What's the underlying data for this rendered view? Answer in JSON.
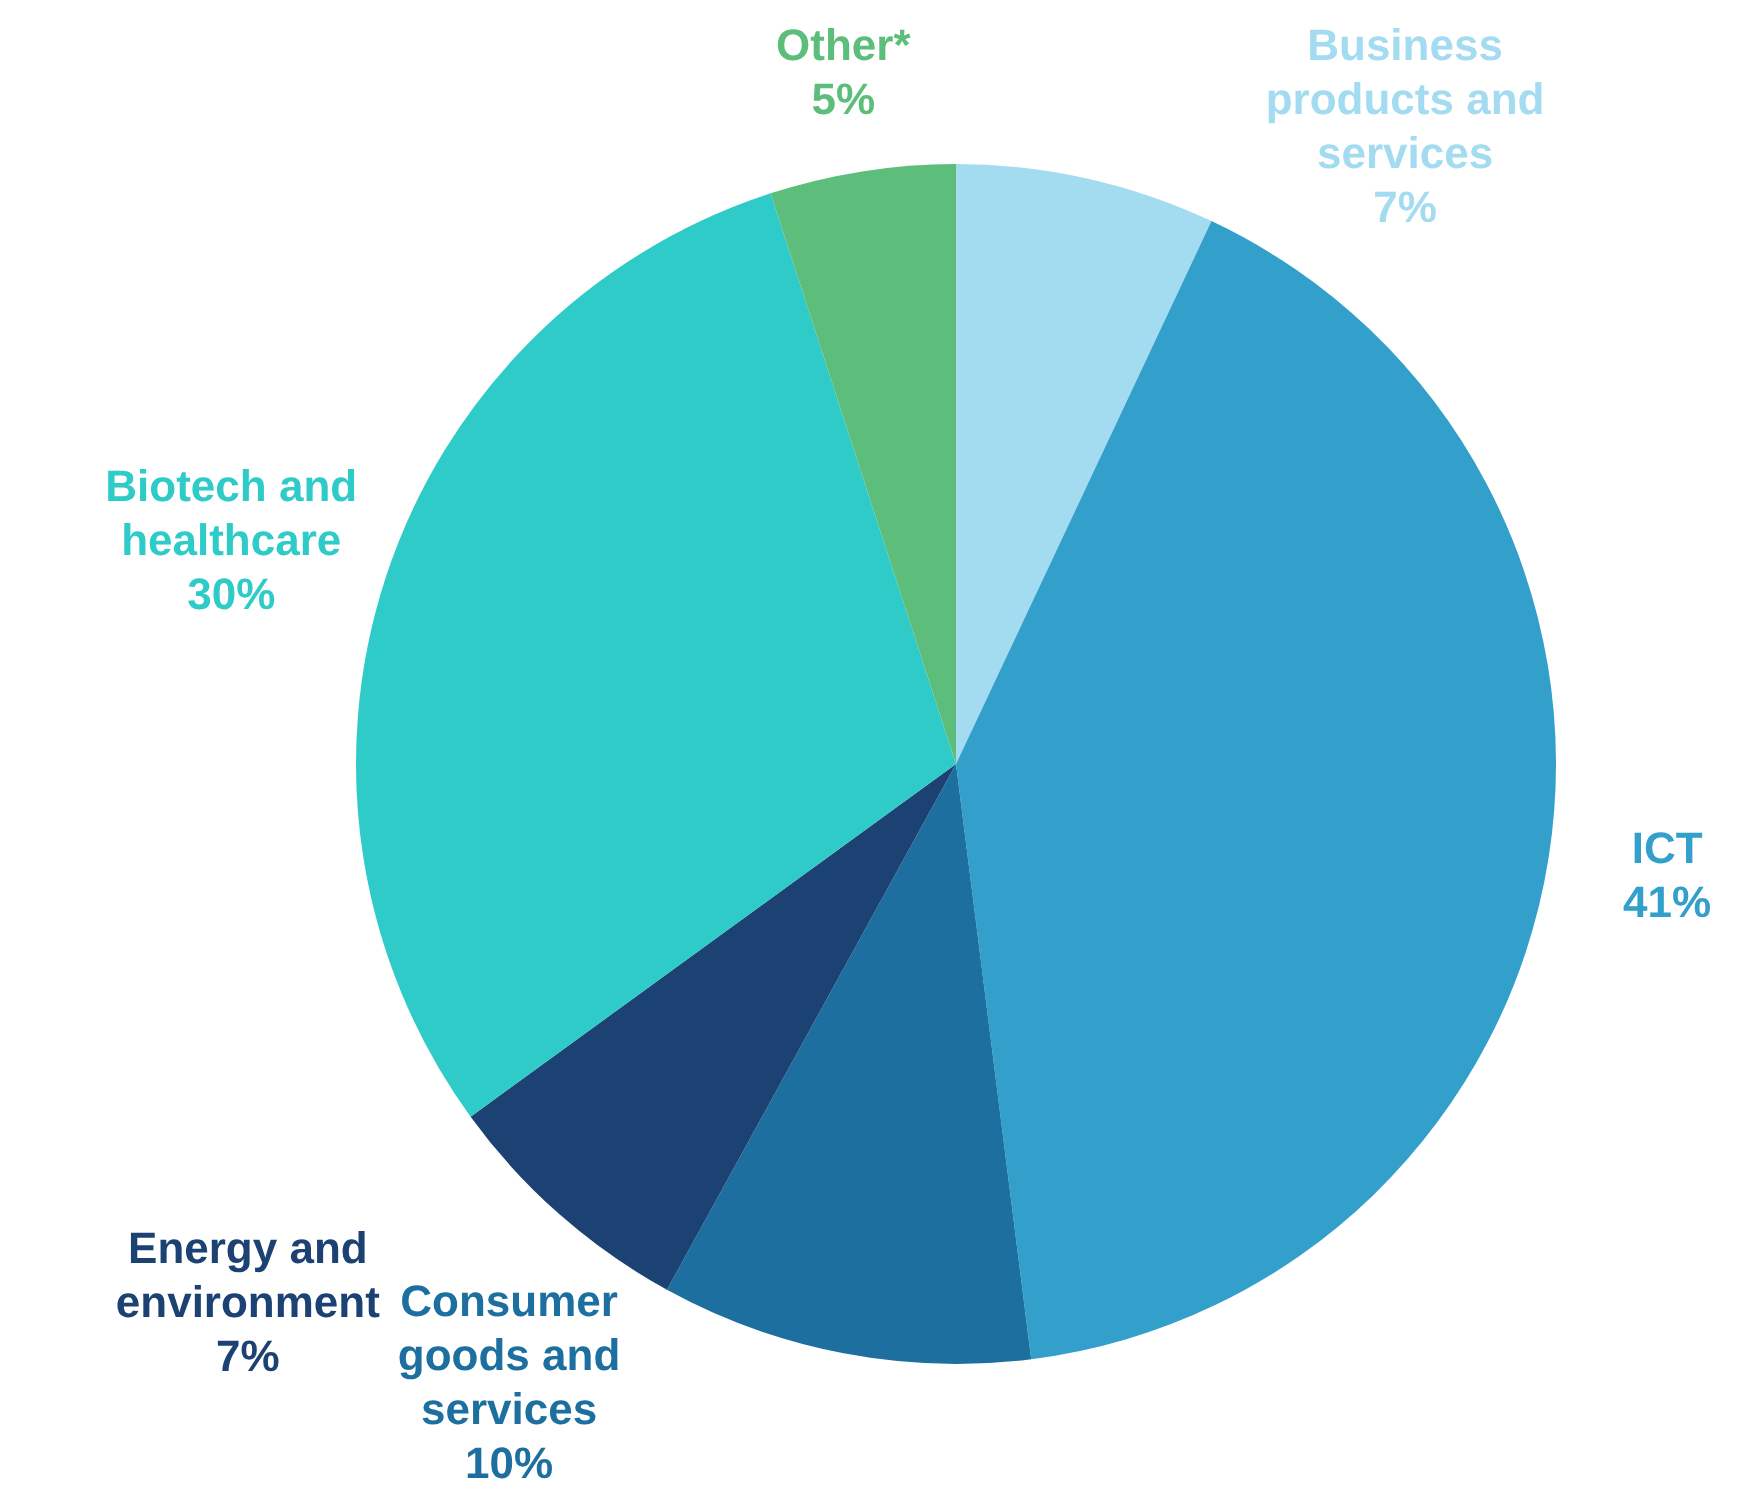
{
  "chart_data": {
    "type": "pie",
    "categories": [
      "Business products and services",
      "ICT",
      "Consumer goods and services",
      "Energy and environment",
      "Biotech and healthcare",
      "Other*"
    ],
    "values": [
      7,
      41,
      10,
      7,
      30,
      5
    ],
    "value_labels": [
      "7%",
      "41%",
      "10%",
      "7%",
      "30%",
      "5%"
    ],
    "colors": [
      "#a3dcf0",
      "#339fcb",
      "#1c6f9e",
      "#1b4273",
      "#2ecbc8",
      "#5dbd7a"
    ],
    "legend": false
  }
}
